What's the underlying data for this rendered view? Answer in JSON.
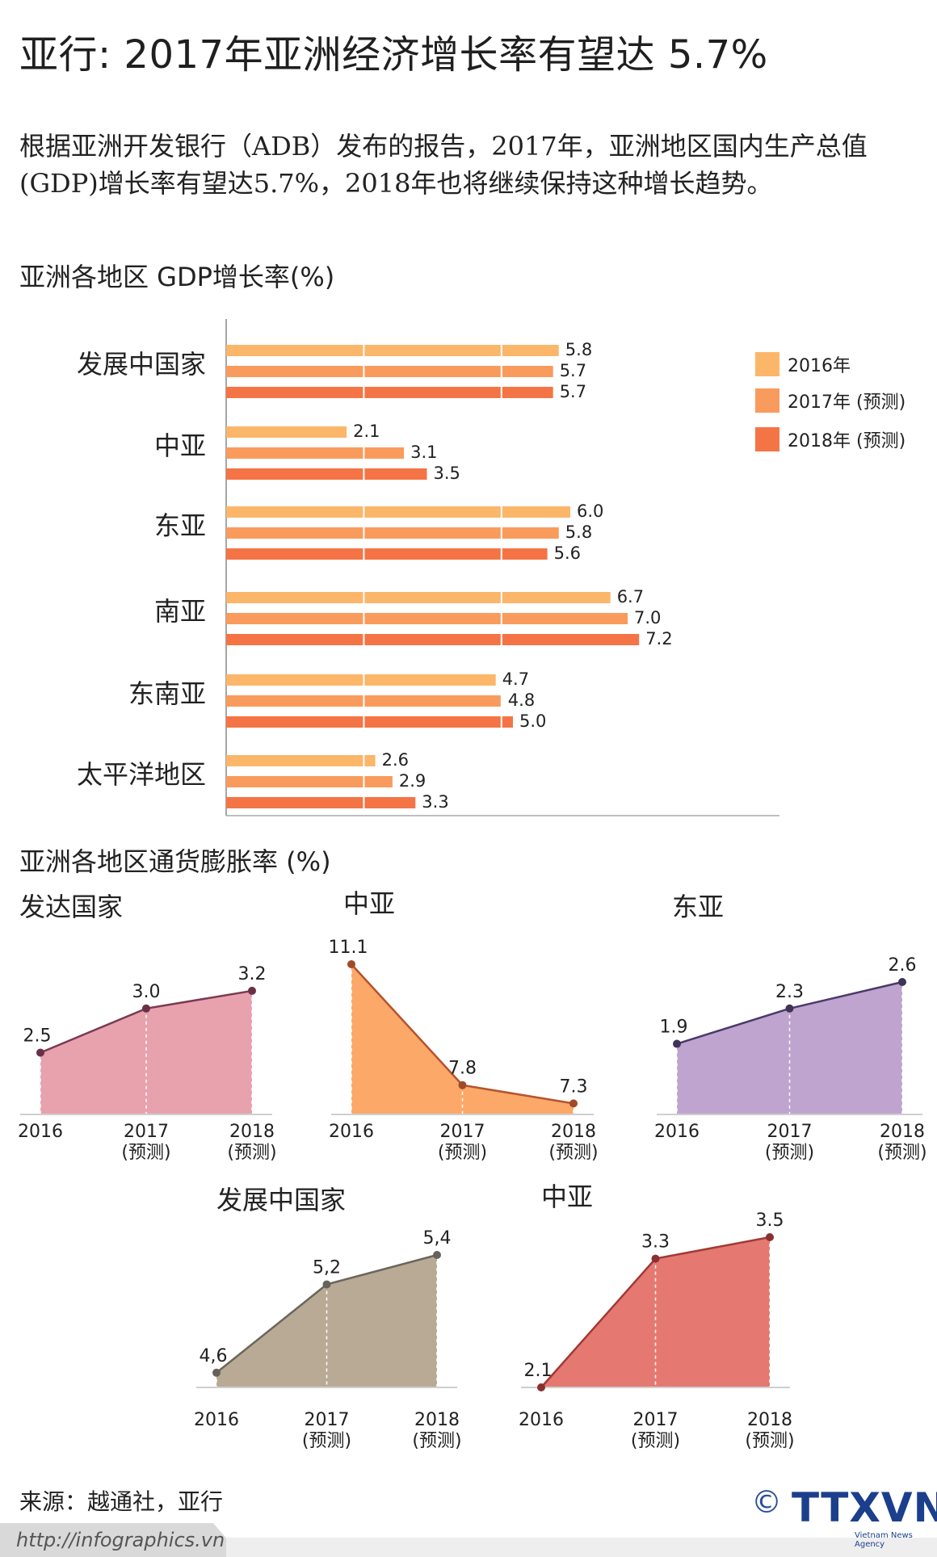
{
  "title": "亚行: 2017年亚洲经济增长率有望达  5.7%",
  "intro": "根据亚洲开发银行（ADB）发布的报告，2017年，亚洲地区国内生产总值(GDP)增长率有望达5.7%，2018年也将继续保持这种增长趋势。",
  "source": "来源：越通社，亚行",
  "url": "http://infographics.vn",
  "copyright": "©",
  "logo": "TTXVN",
  "logo_sub": "Vietnam News Agency",
  "colors": {
    "bar2016": "#fbb66a",
    "bar2017": "#f99b5c",
    "bar2018": "#f47446",
    "pink": "#e7a2ae",
    "orange": "#fba868",
    "purple": "#bfa4cf",
    "taupe": "#b8aa94",
    "red": "#e57971"
  },
  "chart_data": [
    {
      "type": "bar",
      "orientation": "horizontal",
      "title": "亚洲各地区  GDP增长率(%)",
      "categories": [
        "发展中国家",
        "中亚",
        "东亚",
        "南亚",
        "东南亚",
        "太平洋地区"
      ],
      "series": [
        {
          "name": "2016年",
          "values": [
            5.8,
            2.1,
            6.0,
            6.7,
            4.7,
            2.6
          ],
          "labels": [
            "5.8",
            "2.1",
            "6.0",
            "6.7",
            "4.7",
            "2.6"
          ]
        },
        {
          "name": "2017年 (预测)",
          "values": [
            5.7,
            3.1,
            5.8,
            7.0,
            4.8,
            2.9
          ],
          "labels": [
            "5.7",
            "3.1",
            "5.8",
            "7.0",
            "4.8",
            "2.9"
          ]
        },
        {
          "name": "2018年 (预测)",
          "values": [
            5.7,
            3.5,
            5.6,
            7.2,
            5.0,
            3.3
          ],
          "labels": [
            "5.7",
            "3.5",
            "5.6",
            "7.2",
            "5.0",
            "3.3"
          ]
        }
      ],
      "xlim": [
        0,
        10
      ],
      "grid": true,
      "legend": "top-right"
    },
    {
      "type": "area",
      "title": "亚洲各地区通货膨胀率  (%)",
      "x": [
        "2016",
        "2017",
        "2018"
      ],
      "x_sublabels": [
        "",
        "(预测)",
        "(预测)"
      ],
      "panels": [
        {
          "name": "发达国家",
          "values": [
            2.5,
            3.0,
            3.2
          ],
          "labels": [
            "2.5",
            "3.0",
            "3.2"
          ],
          "ylim": [
            1.8,
            3.3
          ]
        },
        {
          "name": "中亚",
          "values": [
            11.1,
            7.8,
            7.3
          ],
          "labels": [
            "11.1",
            "7.8",
            "7.3"
          ],
          "ylim": [
            7.0,
            11.1
          ]
        },
        {
          "name": "东亚",
          "values": [
            1.9,
            2.3,
            2.6
          ],
          "labels": [
            "1.9",
            "2.3",
            "2.6"
          ],
          "ylim": [
            1.1,
            2.6
          ]
        },
        {
          "name": "发展中国家",
          "values": [
            4.6,
            5.2,
            5.4
          ],
          "labels": [
            "4,6",
            "5,2",
            "5,4"
          ],
          "ylim": [
            4.5,
            5.4
          ]
        },
        {
          "name": "中亚",
          "values": [
            2.1,
            3.3,
            3.5
          ],
          "labels": [
            "2.1",
            "3.3",
            "3.5"
          ],
          "ylim": [
            2.1,
            3.5
          ]
        }
      ]
    }
  ]
}
